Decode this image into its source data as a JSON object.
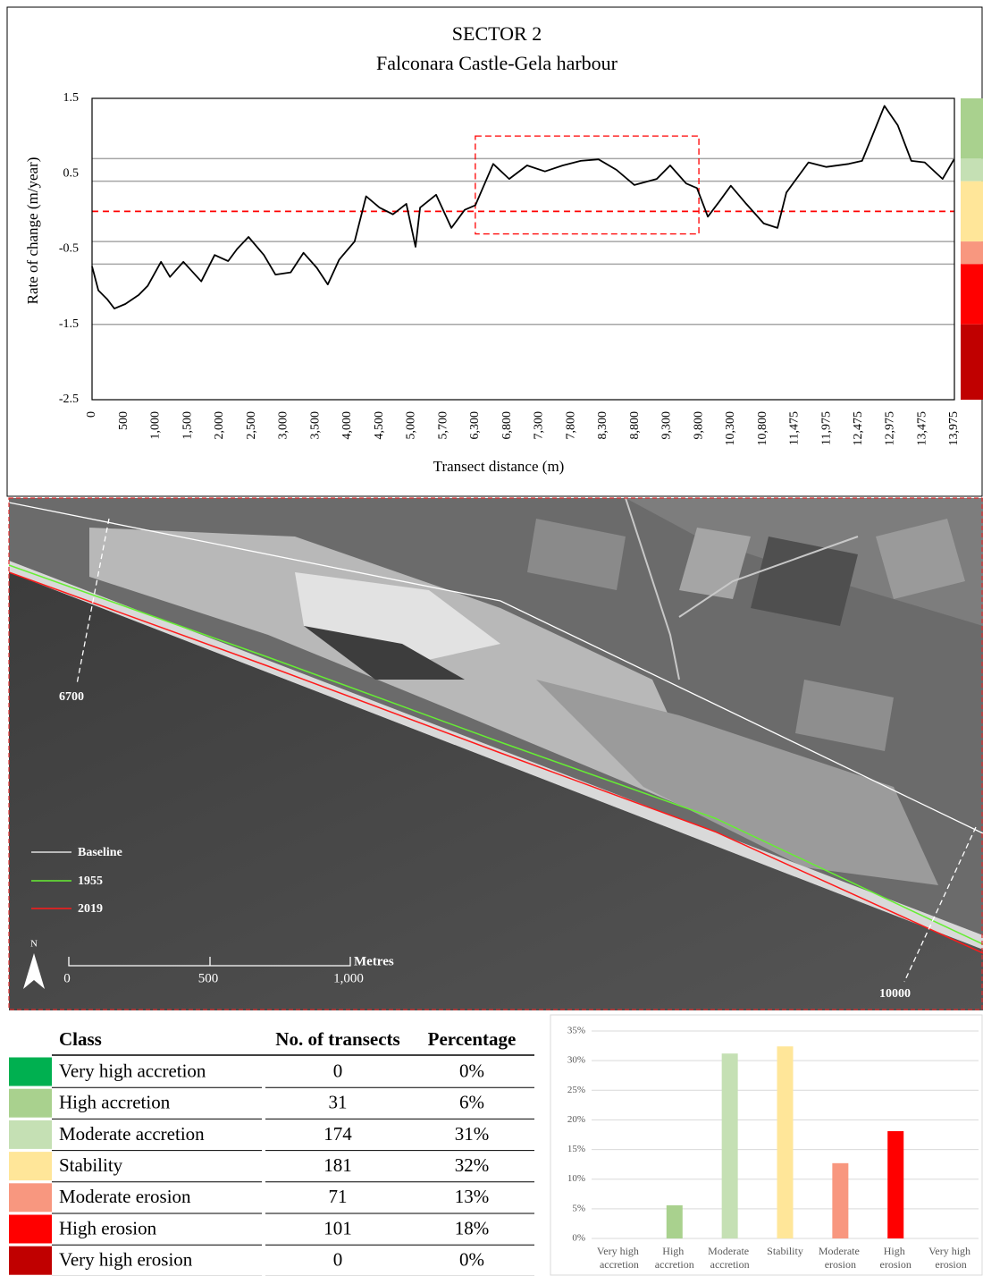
{
  "chart_data": [
    {
      "type": "line",
      "title": "SECTOR 2",
      "subtitle": "Falconara  Castle-Gela harbour",
      "y_label": "Rate of change (m/year)",
      "x_label": "Transect distance (m)",
      "color": "#000000",
      "x": [
        0,
        100,
        240,
        350,
        520,
        730,
        870,
        1080,
        1220,
        1430,
        1710,
        1920,
        2130,
        2270,
        2450,
        2690,
        2870,
        3110,
        3310,
        3520,
        3690,
        3870,
        4110,
        4290,
        4500,
        4710,
        4920,
        5090,
        5190,
        5540,
        5850,
        6100,
        6300,
        6580,
        6830,
        7110,
        7390,
        7670,
        7950,
        8230,
        8510,
        8790,
        9140,
        9350,
        9600,
        9770,
        9940,
        10120,
        10300,
        10540,
        10820,
        11110,
        11300,
        11690,
        11970,
        12320,
        12530,
        12670,
        12880,
        13090,
        13300,
        13510,
        13790,
        13970
      ],
      "values": [
        -0.73,
        -1.05,
        -1.17,
        -1.29,
        -1.23,
        -1.11,
        -0.99,
        -0.67,
        -0.87,
        -0.67,
        -0.93,
        -0.58,
        -0.66,
        -0.5,
        -0.34,
        -0.58,
        -0.84,
        -0.81,
        -0.55,
        -0.75,
        -0.97,
        -0.64,
        -0.4,
        0.2,
        0.05,
        -0.04,
        0.1,
        -0.47,
        0.05,
        0.22,
        -0.22,
        0.02,
        0.08,
        0.63,
        0.43,
        0.61,
        0.53,
        0.61,
        0.67,
        0.69,
        0.55,
        0.35,
        0.43,
        0.61,
        0.37,
        0.31,
        -0.07,
        0.13,
        0.34,
        0.1,
        -0.16,
        -0.22,
        0.25,
        0.65,
        0.59,
        0.63,
        0.67,
        0.96,
        1.4,
        1.14,
        0.67,
        0.65,
        0.43,
        0.69
      ],
      "xlim": [
        0,
        13975
      ],
      "xticks": [
        0,
        500,
        {
          "value": 1000,
          "label": "1,000"
        },
        {
          "value": 1500,
          "label": "1,500"
        },
        {
          "value": 2000,
          "label": "2,000"
        },
        {
          "value": 2500,
          "label": "2,500"
        },
        {
          "value": 3000,
          "label": "3,000"
        },
        {
          "value": 3500,
          "label": "3,500"
        },
        {
          "value": 4000,
          "label": "4,000"
        },
        {
          "value": 4500,
          "label": "4,500"
        },
        {
          "value": 5000,
          "label": "5,000"
        },
        {
          "value": 5700,
          "label": "5,700"
        },
        {
          "value": 6300,
          "label": "6,300"
        },
        {
          "value": 6800,
          "label": "6,800"
        },
        {
          "value": 7300,
          "label": "7,300"
        },
        {
          "value": 7800,
          "label": "7,800"
        },
        {
          "value": 8300,
          "label": "8,300"
        },
        {
          "value": 8800,
          "label": "8,800"
        },
        {
          "value": 9300,
          "label": "9,300"
        },
        {
          "value": 9800,
          "label": "9,800"
        },
        {
          "value": 10300,
          "label": "10,300"
        },
        {
          "value": 10800,
          "label": "10,800"
        },
        {
          "value": 11475,
          "label": "11,475"
        },
        {
          "value": 11975,
          "label": "11,975"
        },
        {
          "value": 12475,
          "label": "12,475"
        },
        {
          "value": 12975,
          "label": "12,975"
        },
        {
          "value": 13475,
          "label": "13,475"
        },
        {
          "value": 13975,
          "label": "13,975"
        }
      ],
      "ylim": [
        -2.5,
        1.5
      ],
      "yticks": [
        -2.5,
        -1.5,
        -0.5,
        0.5,
        1.5
      ],
      "grid": false,
      "thresholds": [
        0.7,
        0.4,
        -0.4,
        -0.7,
        -1.5
      ],
      "class_colors": [
        "#a9d18e",
        "#c5e0b4",
        "#ffe699",
        "#f8977f",
        "#ff0000",
        "#c00000"
      ],
      "reference_line": 0,
      "highlight": {
        "x": [
          6300,
          9800
        ],
        "y": [
          -0.3,
          1.0
        ]
      }
    },
    {
      "type": "bar",
      "categories": [
        "Very high accretion",
        "High accretion",
        "Moderate accretion",
        "Stability",
        "Moderate erosion",
        "High erosion",
        "Very high erosion"
      ],
      "values": [
        0,
        5.6,
        31.2,
        32.4,
        12.7,
        18.1,
        0
      ],
      "colors": [
        "#00b050",
        "#a9d18e",
        "#c5e0b4",
        "#ffe699",
        "#f8977f",
        "#ff0000",
        "#c00000"
      ],
      "ylim": [
        0,
        35
      ],
      "yticks": [
        {
          "value": 0,
          "label": "0%"
        },
        {
          "value": 5,
          "label": "5%"
        },
        {
          "value": 10,
          "label": "10%"
        },
        {
          "value": 15,
          "label": "15%"
        },
        {
          "value": 20,
          "label": "20%"
        },
        {
          "value": 25,
          "label": "25%"
        },
        {
          "value": 30,
          "label": "30%"
        },
        {
          "value": 35,
          "label": "35%"
        }
      ],
      "grid": true
    }
  ],
  "map": {
    "legend": [
      "Baseline",
      "1955",
      "2019"
    ],
    "transect_labels": [
      "6700",
      "10000"
    ],
    "scale_labels": [
      "0",
      "500",
      "1,000"
    ],
    "scale_unit": "Metres",
    "north": "N"
  },
  "table": {
    "header": [
      "Class",
      "No. of transects",
      "Percentage"
    ],
    "rows": [
      [
        "Very high accretion",
        "0",
        "0%"
      ],
      [
        "High accretion",
        "31",
        "6%"
      ],
      [
        "Moderate accretion",
        "174",
        "31%"
      ],
      [
        "Stability",
        "181",
        "32%"
      ],
      [
        "Moderate erosion",
        "71",
        "13%"
      ],
      [
        "High erosion",
        "101",
        "18%"
      ],
      [
        "Very high erosion",
        "0",
        "0%"
      ]
    ],
    "colors": [
      "#00b050",
      "#a9d18e",
      "#c5e0b4",
      "#ffe699",
      "#f8977f",
      "#ff0000",
      "#c00000"
    ]
  }
}
